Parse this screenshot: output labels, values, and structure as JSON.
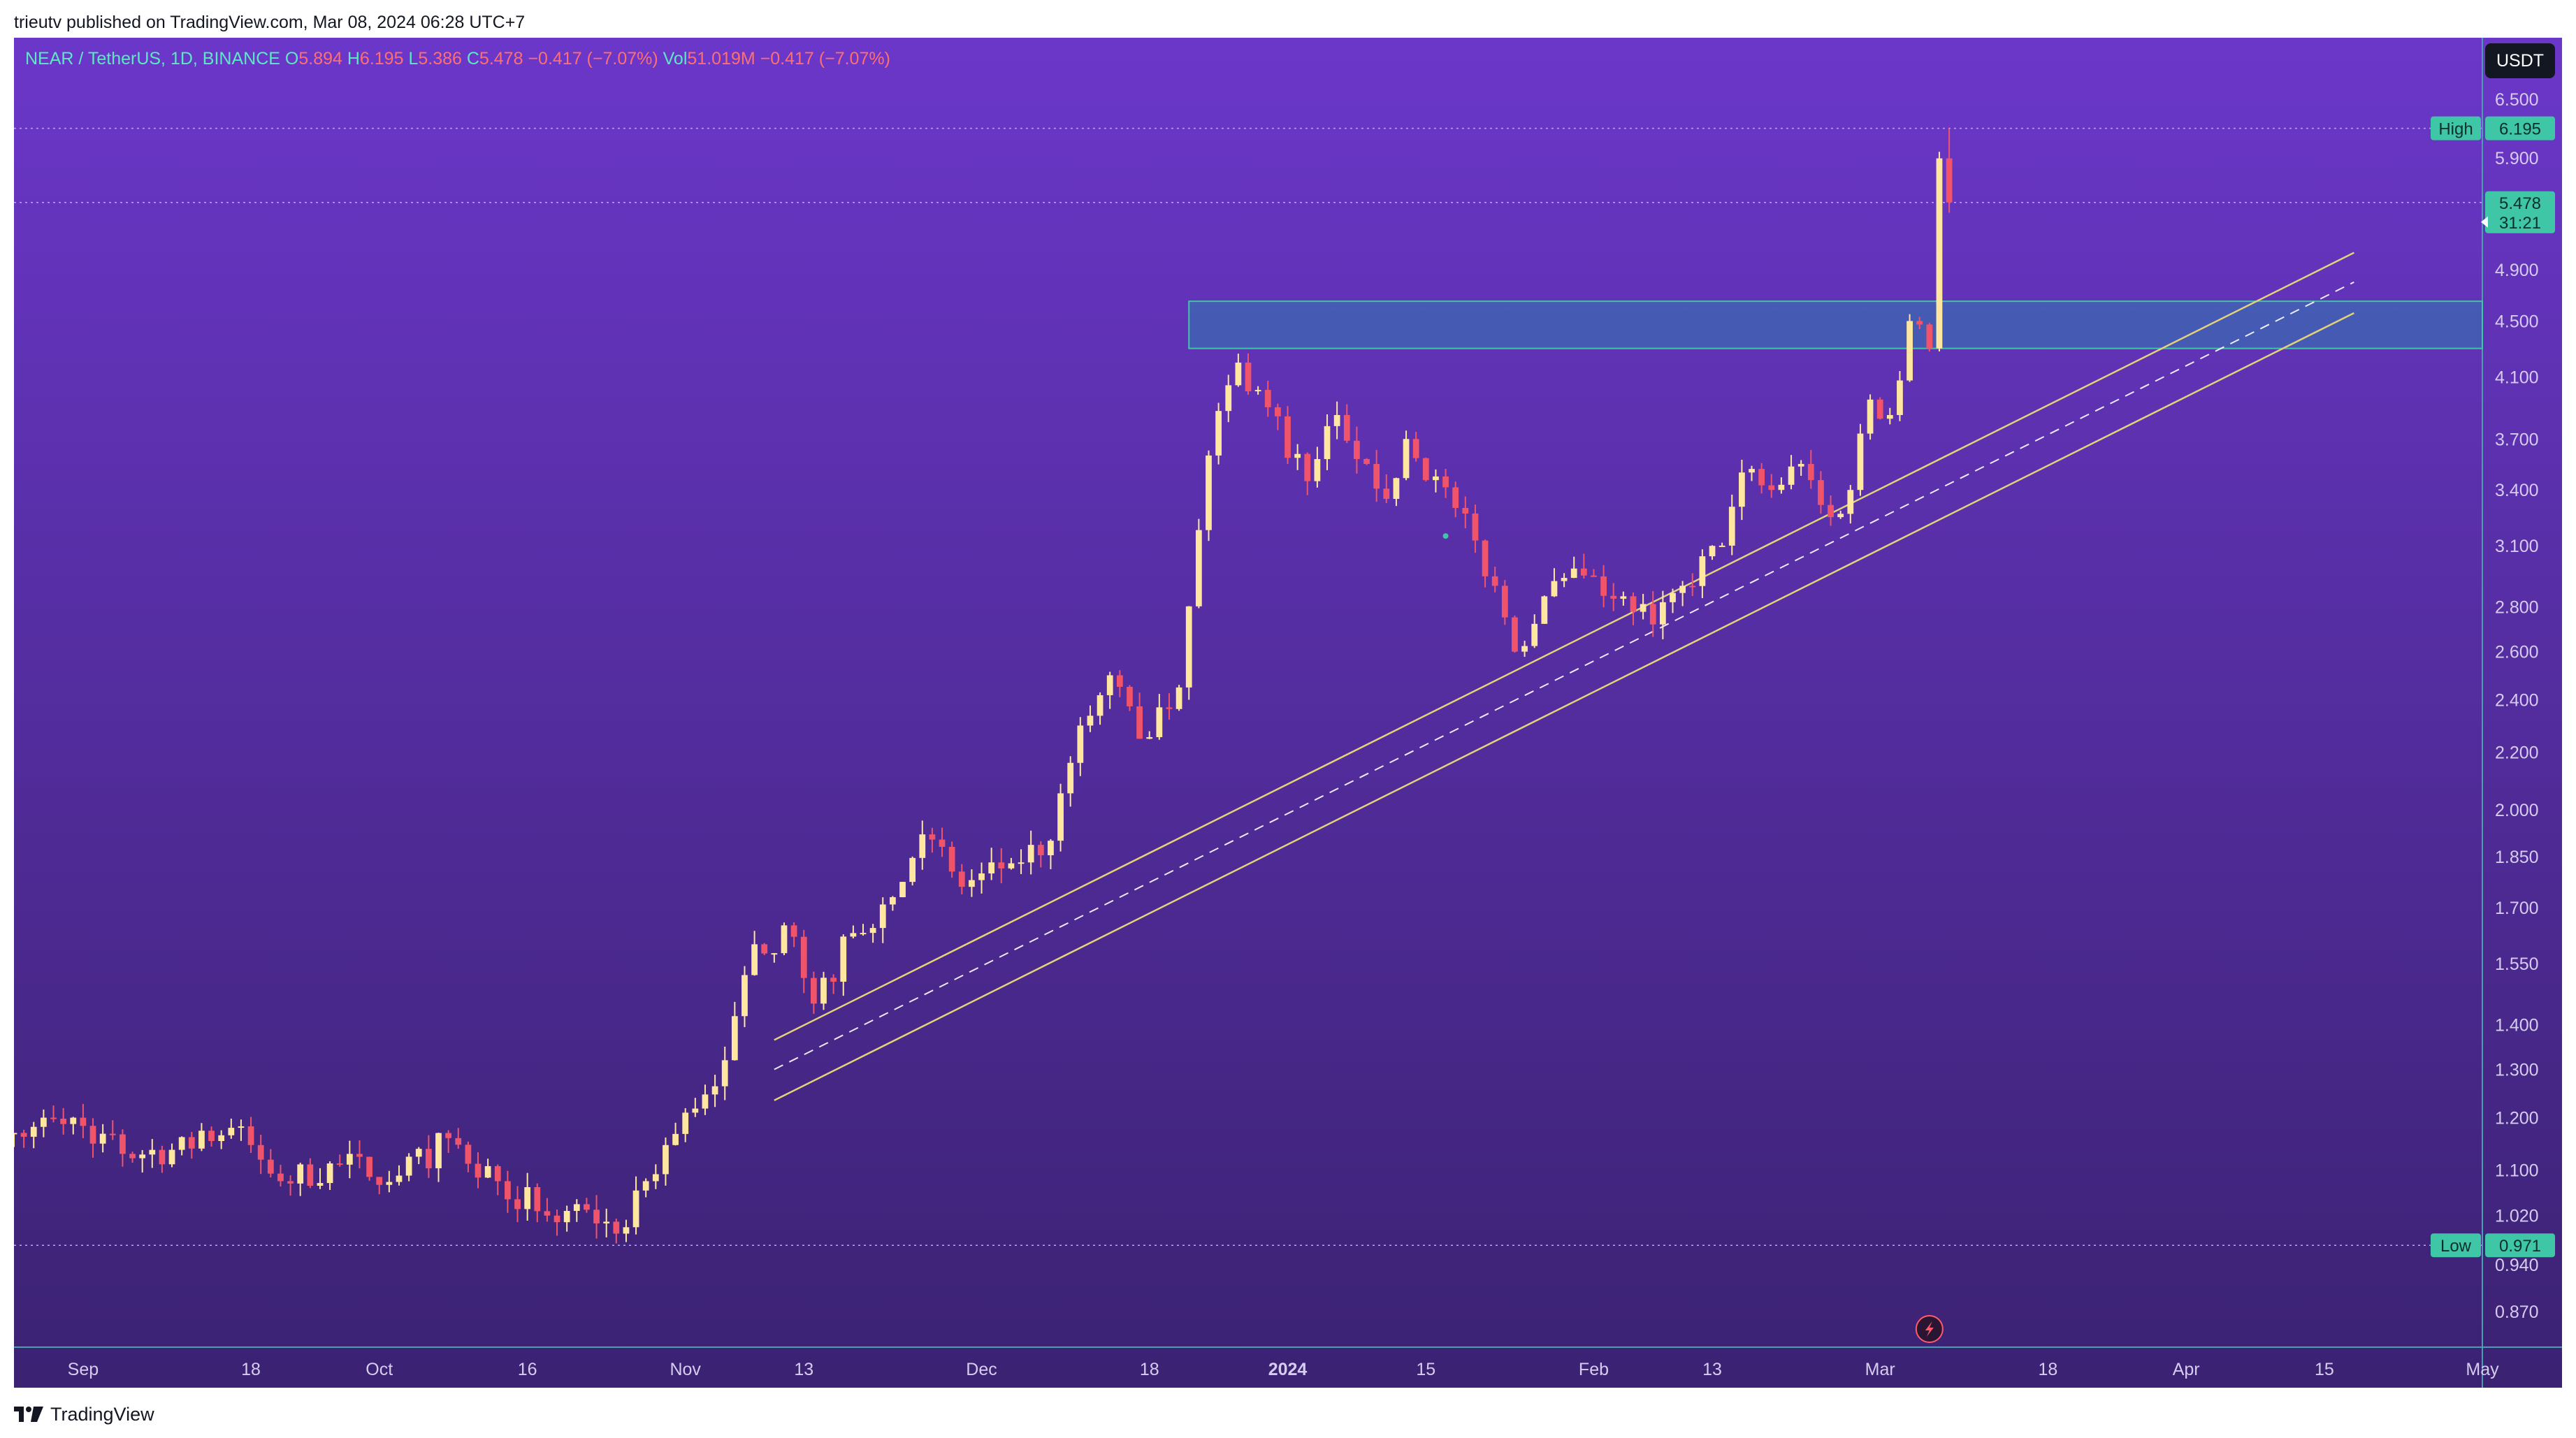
{
  "header": {
    "published_text": "trieutv published on TradingView.com, Mar 08, 2024 06:28 UTC+7"
  },
  "legend": {
    "symbol": "NEAR / TetherUS, 1D, BINANCE",
    "open_label": "O",
    "open": "5.894",
    "high_label": "H",
    "high": "6.195",
    "low_label": "L",
    "low": "5.386",
    "close_label": "C",
    "close": "5.478",
    "change": "−0.417 (−7.07%)",
    "vol_label": "Vol",
    "vol": "51.019M",
    "vol_change": "−0.417 (−7.07%)"
  },
  "toolbar": {
    "currency_button": "USDT"
  },
  "footer": {
    "brand": "TradingView"
  },
  "colors": {
    "bg_top": "#6b37c9",
    "bg_bottom": "#3b2272",
    "candle_up": "#ffe7a0",
    "candle_down": "#f0546a",
    "accent": "#3ec6a6",
    "zone_fill": "#2f7bb0",
    "trendline": "#e3d27a"
  },
  "chart_data": {
    "type": "candlestick",
    "symbol": "NEAR / TetherUS",
    "interval": "1D",
    "exchange": "BINANCE",
    "scale": "log",
    "x_axis": {
      "start": "2023-08-25",
      "end": "2024-05-01",
      "ticks": [
        {
          "date": "2023-09-01",
          "label": "Sep"
        },
        {
          "date": "2023-09-18",
          "label": "18"
        },
        {
          "date": "2023-10-01",
          "label": "Oct"
        },
        {
          "date": "2023-10-16",
          "label": "16"
        },
        {
          "date": "2023-11-01",
          "label": "Nov"
        },
        {
          "date": "2023-11-13",
          "label": "13"
        },
        {
          "date": "2023-12-01",
          "label": "Dec"
        },
        {
          "date": "2023-12-18",
          "label": "18"
        },
        {
          "date": "2024-01-01",
          "label": "2024",
          "bold": true
        },
        {
          "date": "2024-01-15",
          "label": "15"
        },
        {
          "date": "2024-02-01",
          "label": "Feb"
        },
        {
          "date": "2024-02-13",
          "label": "13"
        },
        {
          "date": "2024-03-01",
          "label": "Mar"
        },
        {
          "date": "2024-03-18",
          "label": "18"
        },
        {
          "date": "2024-04-01",
          "label": "Apr"
        },
        {
          "date": "2024-04-15",
          "label": "15"
        },
        {
          "date": "2024-05-01",
          "label": "May"
        }
      ]
    },
    "y_axis": {
      "min": 0.82,
      "max": 7.2,
      "ticks": [
        "0.870",
        "0.940",
        "1.020",
        "1.100",
        "1.200",
        "1.300",
        "1.400",
        "1.550",
        "1.700",
        "1.850",
        "2.000",
        "2.200",
        "2.400",
        "2.600",
        "2.800",
        "3.100",
        "3.400",
        "3.700",
        "4.100",
        "4.500",
        "4.900",
        "5.900",
        "6.500"
      ]
    },
    "last_price": {
      "value": "5.478",
      "countdown": "31:21"
    },
    "high_marker": {
      "label": "High",
      "value": "6.195"
    },
    "low_marker": {
      "label": "Low",
      "value": "0.971"
    },
    "resistance_zone": {
      "from_date": "2023-12-22",
      "to_date": "2024-05-01",
      "low": 4.3,
      "high": 4.65
    },
    "trendline_channel": {
      "start": {
        "date": "2023-11-10",
        "price": 1.3
      },
      "end": {
        "date": "2024-04-18",
        "price": 4.8
      },
      "width_pct": 0.05
    },
    "events": [
      {
        "date": "2024-03-06",
        "type": "lightning"
      }
    ],
    "dividend_marker": {
      "date": "2024-01-17",
      "price": 3.15
    },
    "anchors": [
      {
        "date": "2023-08-25",
        "close": 1.17
      },
      {
        "date": "2023-08-31",
        "close": 1.2
      },
      {
        "date": "2023-09-05",
        "close": 1.13
      },
      {
        "date": "2023-09-12",
        "close": 1.14
      },
      {
        "date": "2023-09-16",
        "close": 1.18
      },
      {
        "date": "2023-09-21",
        "close": 1.08
      },
      {
        "date": "2023-09-27",
        "close": 1.11
      },
      {
        "date": "2023-10-03",
        "close": 1.09
      },
      {
        "date": "2023-10-08",
        "close": 1.16
      },
      {
        "date": "2023-10-13",
        "close": 1.08
      },
      {
        "date": "2023-10-18",
        "close": 1.02
      },
      {
        "date": "2023-10-22",
        "close": 1.03
      },
      {
        "date": "2023-10-25",
        "close": 0.99
      },
      {
        "date": "2023-10-28",
        "close": 1.08
      },
      {
        "date": "2023-11-01",
        "close": 1.21
      },
      {
        "date": "2023-11-05",
        "close": 1.32
      },
      {
        "date": "2023-11-08",
        "close": 1.6
      },
      {
        "date": "2023-11-12",
        "close": 1.62
      },
      {
        "date": "2023-11-14",
        "close": 1.45
      },
      {
        "date": "2023-11-18",
        "close": 1.63
      },
      {
        "date": "2023-11-22",
        "close": 1.73
      },
      {
        "date": "2023-11-25",
        "close": 1.92
      },
      {
        "date": "2023-11-29",
        "close": 1.76
      },
      {
        "date": "2023-12-04",
        "close": 1.83
      },
      {
        "date": "2023-12-08",
        "close": 1.9
      },
      {
        "date": "2023-12-11",
        "close": 2.3
      },
      {
        "date": "2023-12-14",
        "close": 2.5
      },
      {
        "date": "2023-12-17",
        "close": 2.25
      },
      {
        "date": "2023-12-21",
        "close": 2.45
      },
      {
        "date": "2023-12-24",
        "close": 3.6
      },
      {
        "date": "2023-12-27",
        "close": 4.2
      },
      {
        "date": "2023-12-30",
        "close": 3.9
      },
      {
        "date": "2024-01-03",
        "close": 3.45
      },
      {
        "date": "2024-01-06",
        "close": 3.85
      },
      {
        "date": "2024-01-09",
        "close": 3.55
      },
      {
        "date": "2024-01-11",
        "close": 3.35
      },
      {
        "date": "2024-01-13",
        "close": 3.7
      },
      {
        "date": "2024-01-18",
        "close": 3.3
      },
      {
        "date": "2024-01-22",
        "close": 2.9
      },
      {
        "date": "2024-01-24",
        "close": 2.6
      },
      {
        "date": "2024-01-27",
        "close": 2.85
      },
      {
        "date": "2024-01-31",
        "close": 2.95
      },
      {
        "date": "2024-02-04",
        "close": 2.85
      },
      {
        "date": "2024-02-07",
        "close": 2.72
      },
      {
        "date": "2024-02-10",
        "close": 2.9
      },
      {
        "date": "2024-02-14",
        "close": 3.1
      },
      {
        "date": "2024-02-16",
        "close": 3.5
      },
      {
        "date": "2024-02-19",
        "close": 3.4
      },
      {
        "date": "2024-02-22",
        "close": 3.55
      },
      {
        "date": "2024-02-25",
        "close": 3.25
      },
      {
        "date": "2024-02-27",
        "close": 3.4
      },
      {
        "date": "2024-02-29",
        "close": 3.95
      },
      {
        "date": "2024-03-02",
        "close": 3.85
      },
      {
        "date": "2024-03-04",
        "close": 4.5
      },
      {
        "date": "2024-03-06",
        "close": 4.3
      },
      {
        "date": "2024-03-07",
        "close": 5.894
      },
      {
        "date": "2024-03-08",
        "close": 5.478
      }
    ],
    "last_candle": {
      "date": "2024-03-08",
      "open": 5.894,
      "high": 6.195,
      "low": 5.386,
      "close": 5.478
    }
  }
}
